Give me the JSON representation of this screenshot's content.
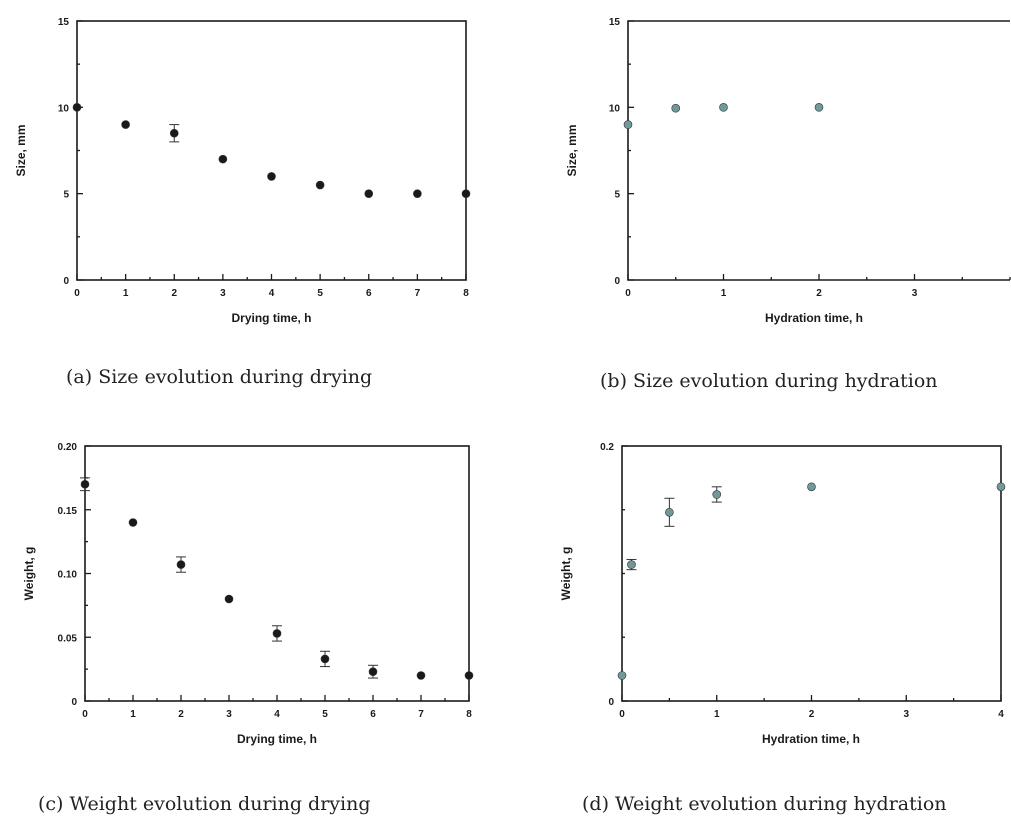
{
  "chart_data": [
    {
      "type": "scatter",
      "caption": "(a)  Size evolution during drying",
      "xlabel": "Drying time, h",
      "ylabel": "Size, mm",
      "xlim": [
        0,
        8
      ],
      "ylim": [
        0,
        15
      ],
      "xticks": [
        0,
        1,
        2,
        3,
        4,
        5,
        6,
        7,
        8
      ],
      "yticks": [
        0,
        5,
        10,
        15
      ],
      "marker_color": "#1a1a1a",
      "points": [
        {
          "x": 0,
          "y": 10
        },
        {
          "x": 1,
          "y": 9
        },
        {
          "x": 2,
          "y": 8.5,
          "err": 0.5
        },
        {
          "x": 3,
          "y": 7
        },
        {
          "x": 4,
          "y": 6
        },
        {
          "x": 5,
          "y": 5.5
        },
        {
          "x": 6,
          "y": 5
        },
        {
          "x": 7,
          "y": 5
        },
        {
          "x": 8,
          "y": 5
        }
      ]
    },
    {
      "type": "scatter",
      "caption": "(b) Size evolution during hydration",
      "xlabel": "Hydration time, h",
      "ylabel": "Size, mm",
      "xlim": [
        0,
        4
      ],
      "ylim": [
        0,
        15
      ],
      "xticks": [
        0,
        1,
        2,
        3
      ],
      "yticks": [
        0,
        5,
        10,
        15
      ],
      "marker_color": "#6f9a9a",
      "points": [
        {
          "x": 0,
          "y": 9
        },
        {
          "x": 0.5,
          "y": 9.95
        },
        {
          "x": 1,
          "y": 10
        },
        {
          "x": 2,
          "y": 10
        }
      ]
    },
    {
      "type": "scatter",
      "caption": "(c) Weight evolution during drying",
      "xlabel": "Drying time, h",
      "ylabel": "Weight, g",
      "xlim": [
        0,
        8
      ],
      "ylim": [
        0,
        0.2
      ],
      "xticks": [
        0,
        1,
        2,
        3,
        4,
        5,
        6,
        7,
        8
      ],
      "yticks": [
        0,
        0.05,
        0.1,
        0.15,
        0.2
      ],
      "ytick_labels": [
        "0",
        "0.05",
        "0.10",
        "0.15",
        "0.20"
      ],
      "marker_color": "#1a1a1a",
      "points": [
        {
          "x": 0,
          "y": 0.17,
          "err": 0.005
        },
        {
          "x": 1,
          "y": 0.14
        },
        {
          "x": 2,
          "y": 0.107,
          "err": 0.006
        },
        {
          "x": 3,
          "y": 0.08
        },
        {
          "x": 4,
          "y": 0.053,
          "err": 0.006
        },
        {
          "x": 5,
          "y": 0.033,
          "err": 0.006
        },
        {
          "x": 6,
          "y": 0.023,
          "err": 0.005
        },
        {
          "x": 7,
          "y": 0.02
        },
        {
          "x": 8,
          "y": 0.02
        }
      ]
    },
    {
      "type": "scatter",
      "caption": "(d) Weight evolution during hydration",
      "xlabel": "Hydration time, h",
      "ylabel": "Weight, g",
      "xlim": [
        0,
        4
      ],
      "ylim": [
        0,
        0.2
      ],
      "xticks": [
        0,
        1,
        2,
        3,
        4
      ],
      "yticks": [
        0,
        0.2
      ],
      "marker_color": "#6f9a9a",
      "points": [
        {
          "x": 0,
          "y": 0.02
        },
        {
          "x": 0.1,
          "y": 0.107,
          "err": 0.004
        },
        {
          "x": 0.5,
          "y": 0.148,
          "err": 0.011
        },
        {
          "x": 1,
          "y": 0.162,
          "err": 0.006
        },
        {
          "x": 2,
          "y": 0.168
        },
        {
          "x": 4,
          "y": 0.168
        }
      ]
    }
  ]
}
